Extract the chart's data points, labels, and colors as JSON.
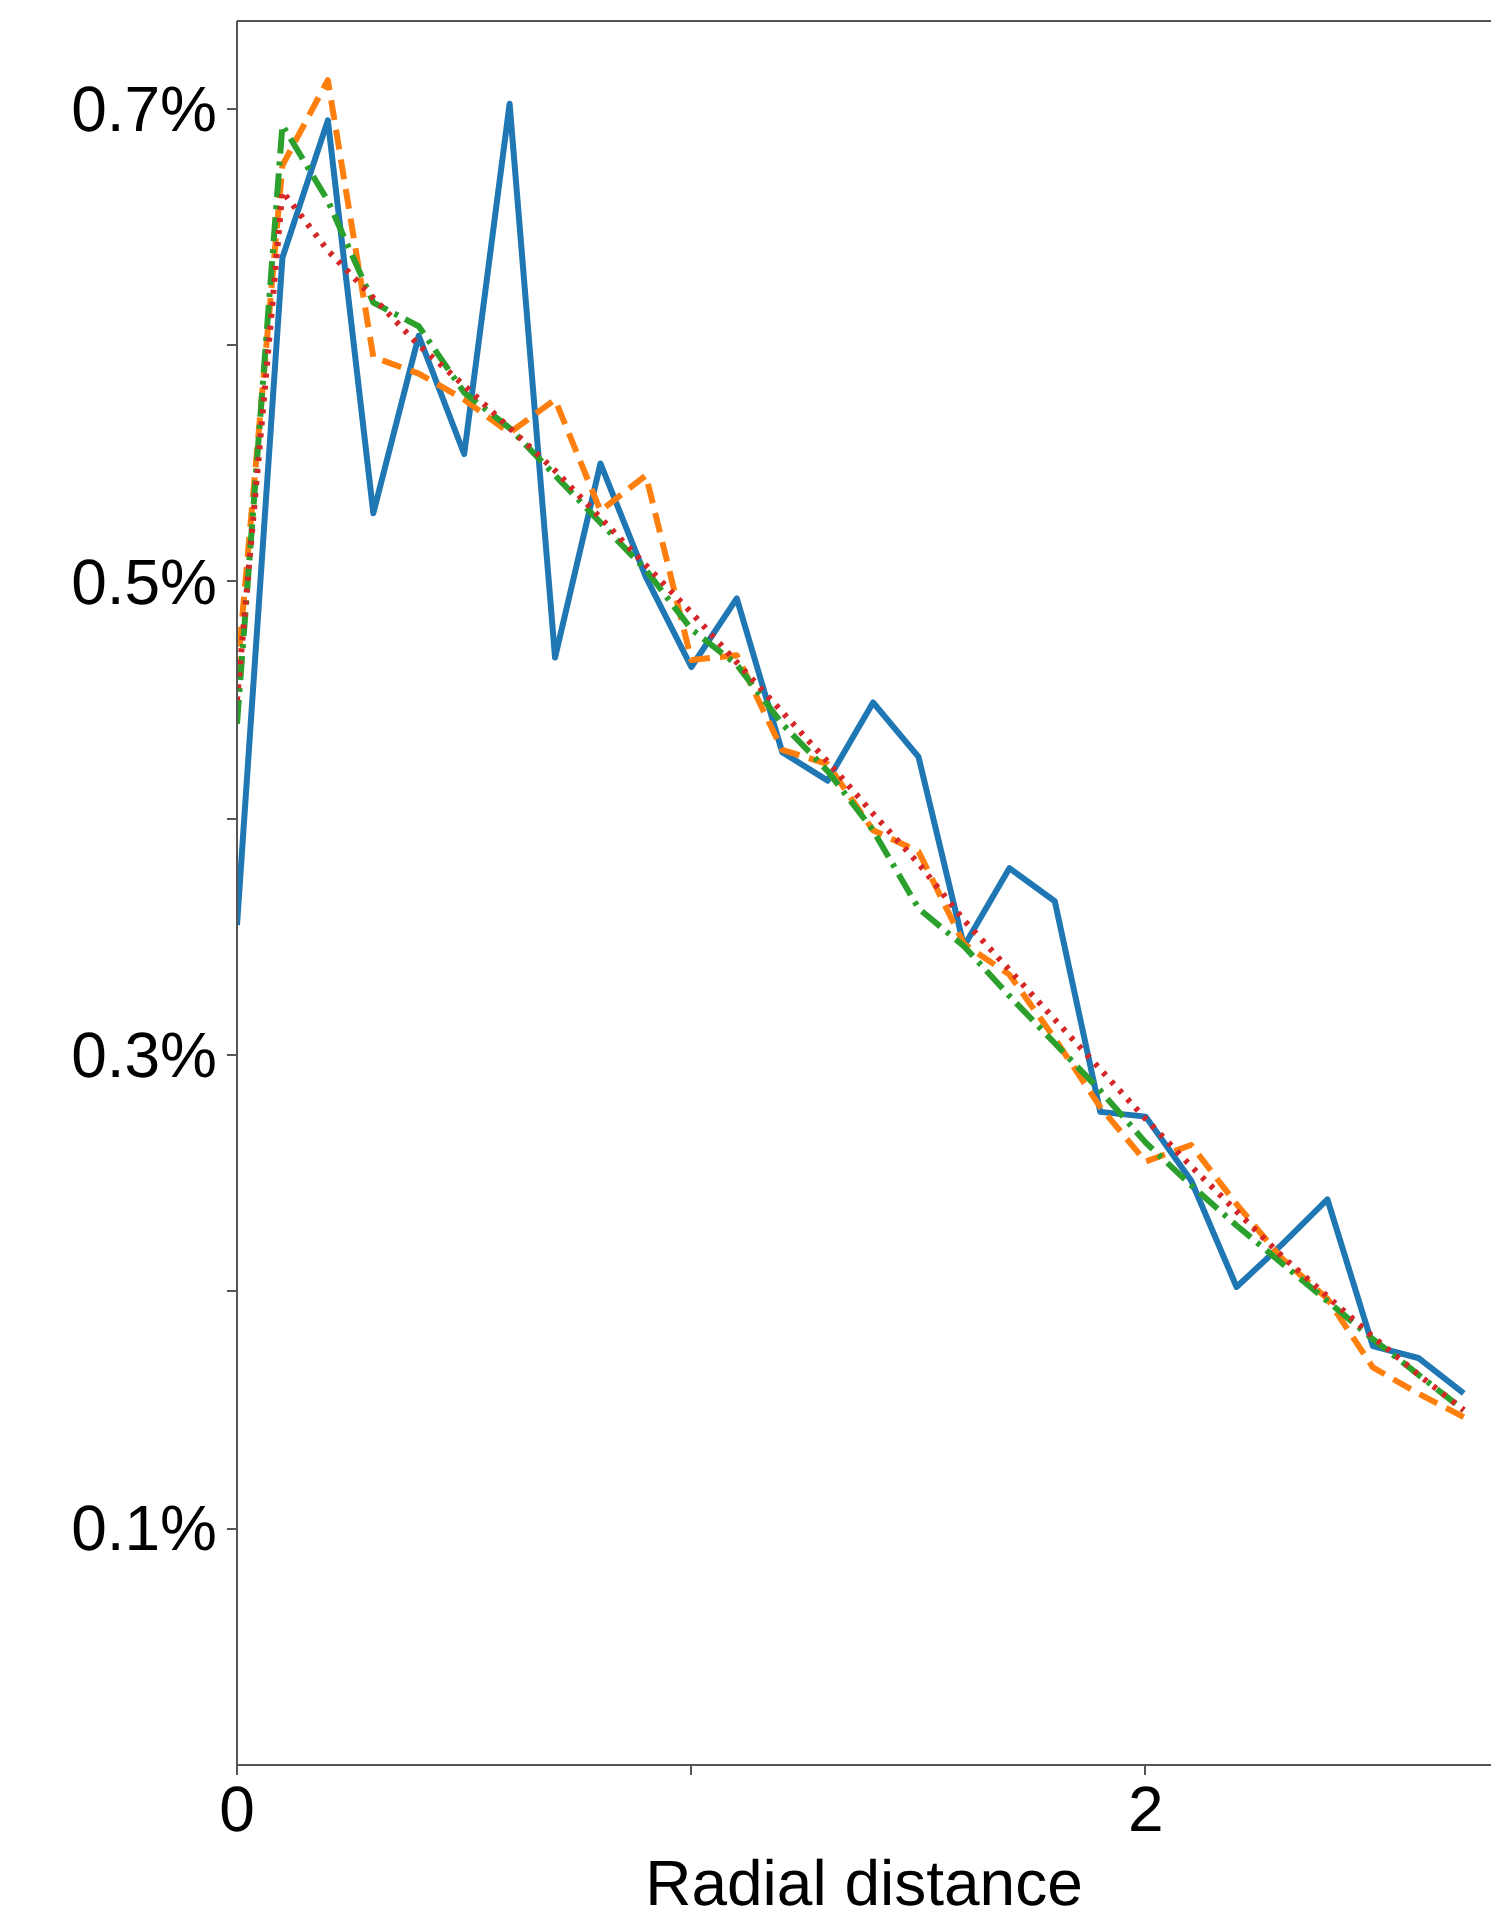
{
  "chart_data": {
    "type": "line",
    "xlabel": "Radial distance",
    "x": [
      0,
      0.1,
      0.2,
      0.3,
      0.4,
      0.5,
      0.6,
      0.7,
      0.8,
      0.9,
      1.0,
      1.1,
      1.2,
      1.3,
      1.4,
      1.5,
      1.6,
      1.7,
      1.8,
      1.9,
      2.0,
      2.1,
      2.2,
      2.3,
      2.4,
      2.5,
      2.6,
      2.7
    ],
    "xlim": [
      0,
      2.76
    ],
    "xticks": [
      0,
      {
        "value": 1,
        "label": null
      },
      2
    ],
    "ylim": [
      0,
      0.737
    ],
    "yticks": [
      {
        "value": 0.1,
        "label": "0.1%"
      },
      {
        "value": 0.2,
        "label": null
      },
      {
        "value": 0.3,
        "label": "0.3%"
      },
      {
        "value": 0.4,
        "label": null
      },
      {
        "value": 0.5,
        "label": "0.5%"
      },
      {
        "value": 0.6,
        "label": null
      },
      {
        "value": 0.7,
        "label": "0.7%"
      }
    ],
    "grid": false,
    "marker": "none",
    "series": [
      {
        "color": "#1f77b4",
        "line_style": "solid",
        "values": [
          0.355,
          0.637,
          0.695,
          0.529,
          0.604,
          0.554,
          0.702,
          0.468,
          0.55,
          0.502,
          0.464,
          0.493,
          0.428,
          0.416,
          0.449,
          0.426,
          0.346,
          0.379,
          0.365,
          0.276,
          0.274,
          0.247,
          0.202,
          0.22,
          0.239,
          0.177,
          0.172,
          0.157
        ]
      },
      {
        "color": "#ff7f0e",
        "line_style": "dashed",
        "values": [
          0.46,
          0.676,
          0.712,
          0.595,
          0.588,
          0.577,
          0.563,
          0.577,
          0.53,
          0.545,
          0.467,
          0.469,
          0.429,
          0.423,
          0.395,
          0.386,
          0.347,
          0.334,
          0.307,
          0.278,
          0.255,
          0.262,
          0.237,
          0.214,
          0.197,
          0.168,
          0.157,
          0.147
        ]
      },
      {
        "color": "#2ca02c",
        "line_style": "dashdot",
        "values": [
          0.44,
          0.693,
          0.661,
          0.618,
          0.608,
          0.58,
          0.565,
          0.545,
          0.525,
          0.505,
          0.48,
          0.465,
          0.44,
          0.42,
          0.395,
          0.362,
          0.346,
          0.325,
          0.305,
          0.285,
          0.263,
          0.245,
          0.228,
          0.212,
          0.196,
          0.18,
          0.165,
          0.15
        ]
      },
      {
        "color": "#d62728",
        "line_style": "dotted",
        "values": [
          0.45,
          0.665,
          0.64,
          0.62,
          0.6,
          0.583,
          0.565,
          0.547,
          0.527,
          0.507,
          0.487,
          0.466,
          0.445,
          0.424,
          0.402,
          0.381,
          0.357,
          0.336,
          0.315,
          0.294,
          0.273,
          0.253,
          0.234,
          0.215,
          0.198,
          0.181,
          0.165,
          0.15
        ]
      }
    ]
  }
}
